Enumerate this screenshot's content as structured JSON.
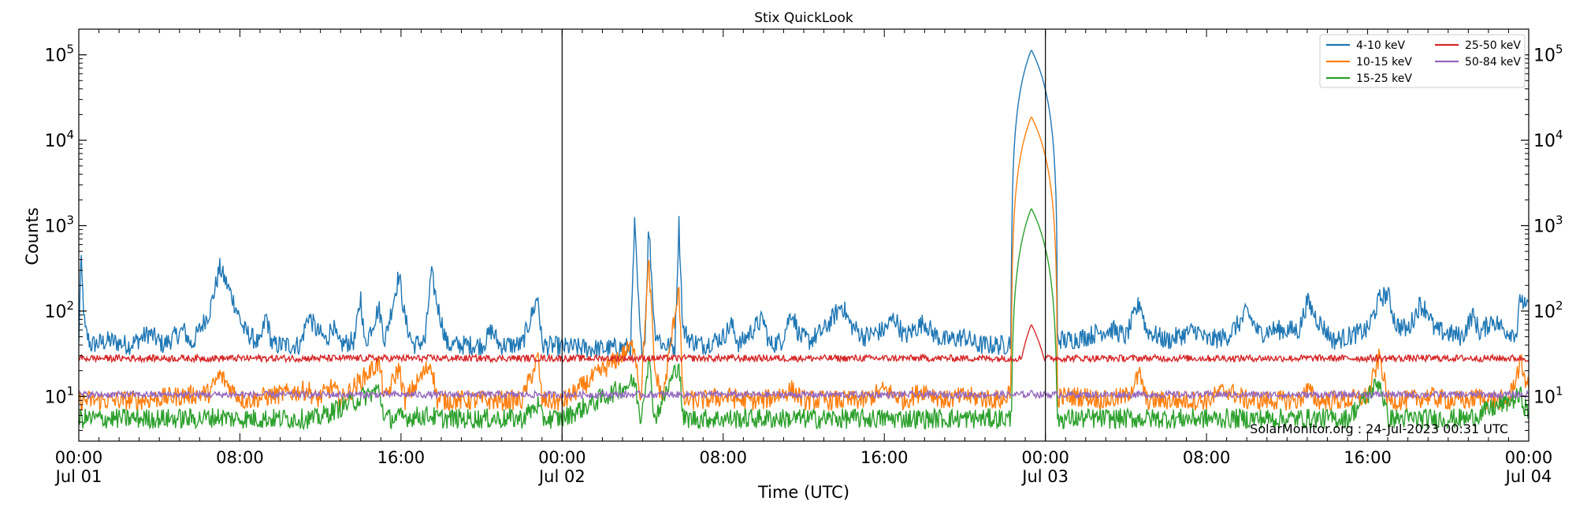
{
  "chart_data": {
    "type": "line",
    "title": "Stix QuickLook",
    "xlabel": "Time (UTC)",
    "ylabel": "Counts",
    "yscale": "log",
    "ylim": [
      3,
      200000
    ],
    "xlim_hours": [
      0,
      72
    ],
    "grid": false,
    "legend_position": "top-right",
    "watermark": "SolarMonitor.org : 24-Jul-2023 00:31 UTC",
    "x_ticks": [
      {
        "hour": 0,
        "label": "00:00\nJul 01"
      },
      {
        "hour": 8,
        "label": "08:00"
      },
      {
        "hour": 16,
        "label": "16:00"
      },
      {
        "hour": 24,
        "label": "00:00\nJul 02"
      },
      {
        "hour": 32,
        "label": "08:00"
      },
      {
        "hour": 40,
        "label": "16:00"
      },
      {
        "hour": 48,
        "label": "00:00\nJul 03"
      },
      {
        "hour": 56,
        "label": "08:00"
      },
      {
        "hour": 64,
        "label": "16:00"
      },
      {
        "hour": 72,
        "label": "00:00\nJul 04"
      }
    ],
    "y_ticks": [
      {
        "value": 10,
        "base": "10",
        "exp": "1"
      },
      {
        "value": 100,
        "base": "10",
        "exp": "2"
      },
      {
        "value": 1000,
        "base": "10",
        "exp": "3"
      },
      {
        "value": 10000,
        "base": "10",
        "exp": "4"
      },
      {
        "value": 100000,
        "base": "10",
        "exp": "5"
      }
    ],
    "day_boundaries": [
      24,
      48
    ],
    "series": [
      {
        "name": "4-10 keV",
        "color": "#1f77b4",
        "baseline": 40,
        "points": [
          [
            0,
            40
          ],
          [
            0.1,
            420
          ],
          [
            0.3,
            60
          ],
          [
            0.6,
            40
          ],
          [
            1.5,
            45
          ],
          [
            2.5,
            40
          ],
          [
            3.5,
            55
          ],
          [
            4.2,
            40
          ],
          [
            5.2,
            60
          ],
          [
            5.6,
            40
          ],
          [
            6.5,
            100
          ],
          [
            7,
            320
          ],
          [
            7.6,
            150
          ],
          [
            8.2,
            60
          ],
          [
            9,
            40
          ],
          [
            9.3,
            90
          ],
          [
            9.6,
            40
          ],
          [
            11,
            40
          ],
          [
            11.4,
            90
          ],
          [
            11.8,
            60
          ],
          [
            12.3,
            45
          ],
          [
            12.6,
            70
          ],
          [
            12.9,
            40
          ],
          [
            13.7,
            45
          ],
          [
            14,
            150
          ],
          [
            14.2,
            40
          ],
          [
            14.9,
            110
          ],
          [
            15.2,
            45
          ],
          [
            15.9,
            270
          ],
          [
            16.2,
            80
          ],
          [
            16.6,
            40
          ],
          [
            17.2,
            45
          ],
          [
            17.5,
            280
          ],
          [
            17.8,
            120
          ],
          [
            18.3,
            40
          ],
          [
            20,
            40
          ],
          [
            20.2,
            45
          ],
          [
            20.5,
            60
          ],
          [
            20.9,
            40
          ],
          [
            22,
            40
          ],
          [
            22.8,
            150
          ],
          [
            23,
            40
          ],
          [
            24,
            38
          ],
          [
            26,
            36
          ],
          [
            27.4,
            38
          ],
          [
            27.6,
            1000
          ],
          [
            27.9,
            40
          ],
          [
            28.1,
            40
          ],
          [
            28.3,
            1000
          ],
          [
            28.6,
            60
          ],
          [
            29,
            40
          ],
          [
            29.6,
            38
          ],
          [
            29.8,
            1050
          ],
          [
            30,
            60
          ],
          [
            30.4,
            45
          ],
          [
            31,
            40
          ],
          [
            32,
            50
          ],
          [
            32.4,
            70
          ],
          [
            32.8,
            40
          ],
          [
            33.7,
            70
          ],
          [
            34,
            80
          ],
          [
            34.3,
            40
          ],
          [
            34.9,
            45
          ],
          [
            35.4,
            100
          ],
          [
            35.8,
            50
          ],
          [
            36.3,
            45
          ],
          [
            37,
            60
          ],
          [
            37.4,
            80
          ],
          [
            37.9,
            120
          ],
          [
            38.3,
            70
          ],
          [
            39,
            50
          ],
          [
            40,
            60
          ],
          [
            40.5,
            85
          ],
          [
            41,
            50
          ],
          [
            42,
            75
          ],
          [
            42.4,
            55
          ],
          [
            43,
            45
          ],
          [
            44,
            50
          ],
          [
            44.6,
            40
          ],
          [
            46,
            40
          ],
          [
            47,
            60
          ],
          [
            47.5,
            110
          ],
          [
            47.9,
            120
          ],
          [
            48.3,
            50
          ],
          [
            49,
            45
          ],
          [
            50,
            50
          ],
          [
            51,
            60
          ],
          [
            51.4,
            60
          ],
          [
            52,
            50
          ],
          [
            52.7,
            130
          ],
          [
            53,
            60
          ],
          [
            54,
            45
          ],
          [
            55.5,
            60
          ],
          [
            56,
            45
          ],
          [
            57,
            50
          ],
          [
            57.8,
            80
          ],
          [
            58,
            100
          ],
          [
            58.6,
            55
          ],
          [
            59.2,
            60
          ],
          [
            60.6,
            60
          ],
          [
            61,
            130
          ],
          [
            61.5,
            80
          ],
          [
            62.3,
            45
          ],
          [
            63,
            50
          ],
          [
            64,
            60
          ],
          [
            64.6,
            140
          ],
          [
            65,
            160
          ],
          [
            65.4,
            70
          ],
          [
            66,
            60
          ],
          [
            66.6,
            120
          ],
          [
            67,
            100
          ],
          [
            67.3,
            60
          ],
          [
            68,
            55
          ],
          [
            68.7,
            50
          ],
          [
            69.2,
            90
          ],
          [
            69.6,
            55
          ],
          [
            70.2,
            80
          ],
          [
            70.8,
            60
          ],
          [
            71.4,
            55
          ],
          [
            71.6,
            150
          ],
          [
            71.9,
            100
          ],
          [
            72,
            120
          ]
        ]
      },
      {
        "name": "10-15 keV",
        "color": "#ff7f0e",
        "baseline": 8.5,
        "points": [
          [
            0,
            9
          ],
          [
            3,
            9
          ],
          [
            6.5,
            11
          ],
          [
            7,
            18
          ],
          [
            7.6,
            12
          ],
          [
            8.2,
            9
          ],
          [
            11.4,
            12
          ],
          [
            11.8,
            9
          ],
          [
            12.6,
            13
          ],
          [
            13,
            9
          ],
          [
            14.9,
            25
          ],
          [
            15.2,
            9
          ],
          [
            15.9,
            22
          ],
          [
            16.2,
            9
          ],
          [
            17.5,
            25
          ],
          [
            17.8,
            9
          ],
          [
            22,
            9
          ],
          [
            22.8,
            28
          ],
          [
            23,
            9
          ],
          [
            24,
            8.5
          ],
          [
            27.6,
            40
          ],
          [
            27.9,
            9
          ],
          [
            28.3,
            380
          ],
          [
            28.6,
            20
          ],
          [
            29,
            9
          ],
          [
            29.8,
            200
          ],
          [
            30,
            9
          ],
          [
            31,
            9
          ],
          [
            32,
            10
          ],
          [
            33,
            9
          ],
          [
            34,
            9
          ],
          [
            35.4,
            12
          ],
          [
            36,
            9
          ],
          [
            39,
            9
          ],
          [
            40,
            12
          ],
          [
            41,
            9
          ],
          [
            42,
            12
          ],
          [
            43,
            9
          ],
          [
            44,
            10
          ],
          [
            46,
            9
          ],
          [
            46.2,
            12
          ],
          [
            46.5,
            15
          ],
          [
            47,
            11
          ],
          [
            48,
            9
          ],
          [
            49,
            10
          ],
          [
            50,
            10
          ],
          [
            51,
            9
          ],
          [
            52,
            10
          ],
          [
            52.7,
            18
          ],
          [
            53,
            9
          ],
          [
            55,
            9
          ],
          [
            56,
            9
          ],
          [
            57,
            12
          ],
          [
            58,
            9
          ],
          [
            59,
            9
          ],
          [
            60.6,
            9
          ],
          [
            61,
            12
          ],
          [
            61.5,
            9
          ],
          [
            62,
            9
          ],
          [
            63,
            9
          ],
          [
            64,
            10
          ],
          [
            64.6,
            30
          ],
          [
            65,
            9
          ],
          [
            66,
            9
          ],
          [
            67,
            10
          ],
          [
            68,
            9
          ],
          [
            69,
            9
          ],
          [
            69.6,
            10
          ],
          [
            70,
            9
          ],
          [
            71,
            9
          ],
          [
            71.6,
            25
          ],
          [
            72,
            12
          ]
        ]
      },
      {
        "name": "15-25 keV",
        "color": "#2ca02c",
        "baseline": 5.5,
        "points": [
          [
            0,
            5.5
          ],
          [
            3,
            5.5
          ],
          [
            6,
            5.5
          ],
          [
            7,
            5.8
          ],
          [
            7.6,
            5.5
          ],
          [
            11,
            5.5
          ],
          [
            11.8,
            5.5
          ],
          [
            14.9,
            12
          ],
          [
            15.2,
            5.5
          ],
          [
            17.5,
            6
          ],
          [
            17.8,
            5.5
          ],
          [
            22,
            5.5
          ],
          [
            22.8,
            8
          ],
          [
            23,
            5.5
          ],
          [
            24,
            5.5
          ],
          [
            27.6,
            15
          ],
          [
            27.9,
            5.5
          ],
          [
            28.3,
            28
          ],
          [
            28.6,
            5.5
          ],
          [
            29.8,
            25
          ],
          [
            30,
            5.5
          ],
          [
            33,
            5.5
          ],
          [
            36,
            5.5
          ],
          [
            40,
            5.5
          ],
          [
            43,
            5.5
          ],
          [
            46,
            5.5
          ],
          [
            48,
            5.5
          ],
          [
            51,
            5.5
          ],
          [
            54,
            5.5
          ],
          [
            57,
            5.5
          ],
          [
            60,
            5.5
          ],
          [
            63,
            5.5
          ],
          [
            64.6,
            15
          ],
          [
            65,
            5.5
          ],
          [
            67,
            5.5
          ],
          [
            69,
            5.5
          ],
          [
            71.6,
            10
          ],
          [
            72,
            6
          ]
        ]
      },
      {
        "name": "25-50 keV",
        "color": "#d62728",
        "baseline": 28,
        "points": [
          [
            0,
            28
          ],
          [
            6,
            28
          ],
          [
            12,
            28
          ],
          [
            18,
            28
          ],
          [
            24,
            28
          ],
          [
            30,
            28
          ],
          [
            36,
            28
          ],
          [
            42,
            28
          ],
          [
            48,
            28
          ],
          [
            54,
            28
          ],
          [
            60,
            28
          ],
          [
            66,
            28
          ],
          [
            72,
            28
          ]
        ]
      },
      {
        "name": "50-84 keV",
        "color": "#9467bd",
        "baseline": 10.5,
        "points": [
          [
            0,
            10.5
          ],
          [
            6,
            10.5
          ],
          [
            12,
            10.5
          ],
          [
            18,
            10.5
          ],
          [
            24,
            10.5
          ],
          [
            30,
            10.5
          ],
          [
            36,
            10.5
          ],
          [
            42,
            10.5
          ],
          [
            48,
            10.5
          ],
          [
            54,
            10.5
          ],
          [
            60,
            10.5
          ],
          [
            66,
            10.5
          ],
          [
            72,
            10.5
          ]
        ]
      }
    ],
    "flare": {
      "start": 46.3,
      "peak": 47.3,
      "end": 48.6,
      "peaks": {
        "4-10 keV": 115000,
        "10-15 keV": 19000,
        "15-25 keV": 1600,
        "25-50 keV": 70,
        "50-84 keV": 12
      }
    }
  }
}
